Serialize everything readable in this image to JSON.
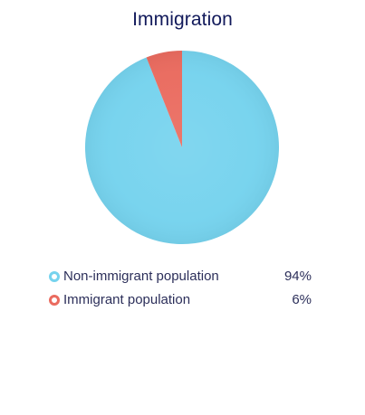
{
  "chart_data": {
    "type": "pie",
    "title": "Immigration",
    "slices": [
      {
        "label": "Non-immigrant population",
        "value": 94,
        "value_label": "94%",
        "color": "#76d3ee"
      },
      {
        "label": "Immigrant population",
        "value": 6,
        "value_label": "6%",
        "color": "#ea6b5f"
      }
    ],
    "legend_position": "bottom"
  }
}
